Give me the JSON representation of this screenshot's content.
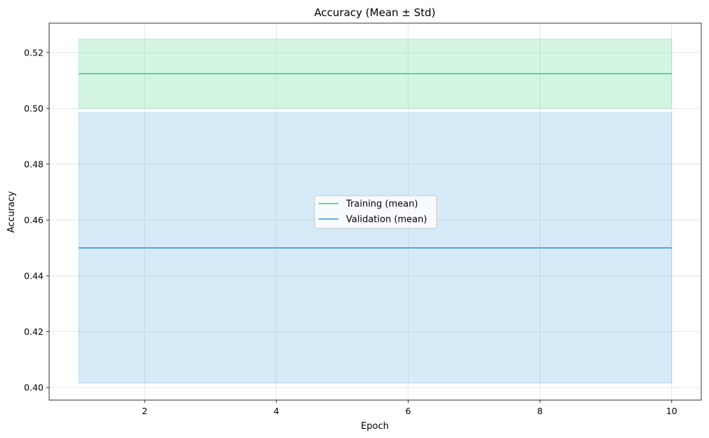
{
  "chart_data": {
    "type": "line",
    "title": "Accuracy (Mean ± Std)",
    "xlabel": "Epoch",
    "ylabel": "Accuracy",
    "x": [
      1,
      2,
      3,
      4,
      5,
      6,
      7,
      8,
      9,
      10
    ],
    "xlim": [
      0.55,
      10.45
    ],
    "ylim": [
      0.3955,
      0.5305
    ],
    "xticks": [
      2,
      4,
      6,
      8,
      10
    ],
    "xtick_labels": [
      "2",
      "4",
      "6",
      "8",
      "10"
    ],
    "yticks": [
      0.4,
      0.42,
      0.44,
      0.46,
      0.48,
      0.5,
      0.52
    ],
    "ytick_labels": [
      "0.40",
      "0.42",
      "0.44",
      "0.46",
      "0.48",
      "0.50",
      "0.52"
    ],
    "grid": true,
    "legend_position": "center",
    "series": [
      {
        "name": "Training (mean)",
        "color": "#2ecc71",
        "values": [
          0.5124,
          0.5124,
          0.5124,
          0.5124,
          0.5124,
          0.5124,
          0.5124,
          0.5124,
          0.5124,
          0.5124
        ],
        "band_lower": [
          0.5,
          0.5,
          0.5,
          0.5,
          0.5,
          0.5,
          0.5,
          0.5,
          0.5,
          0.5
        ],
        "band_upper": [
          0.5248,
          0.5248,
          0.5248,
          0.5248,
          0.5248,
          0.5248,
          0.5248,
          0.5248,
          0.5248,
          0.5248
        ]
      },
      {
        "name": "Validation (mean)",
        "color": "#3498db",
        "values": [
          0.45,
          0.45,
          0.45,
          0.45,
          0.45,
          0.45,
          0.45,
          0.45,
          0.45,
          0.45
        ],
        "band_lower": [
          0.4016,
          0.4016,
          0.4016,
          0.4016,
          0.4016,
          0.4016,
          0.4016,
          0.4016,
          0.4016,
          0.4016
        ],
        "band_upper": [
          0.4984,
          0.4984,
          0.4984,
          0.4984,
          0.4984,
          0.4984,
          0.4984,
          0.4984,
          0.4984,
          0.4984
        ]
      }
    ]
  }
}
